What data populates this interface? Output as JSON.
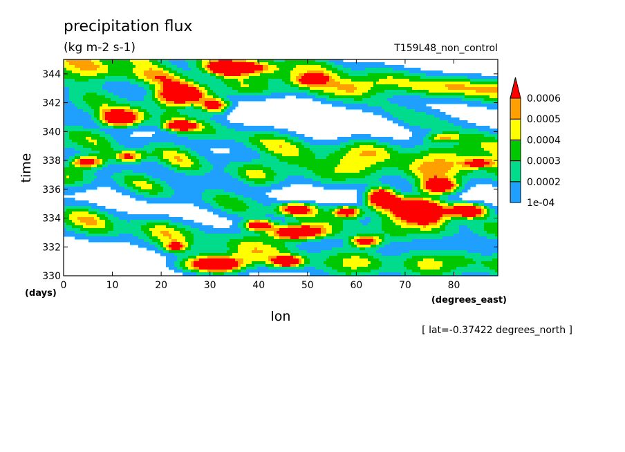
{
  "chart_data": {
    "type": "heatmap",
    "title": "precipitation flux",
    "units": "(kg m-2 s-1)",
    "dataset": "T159L48_non_control",
    "xlabel": "lon",
    "xunits": "(degrees_east)",
    "ylabel": "time",
    "yunits": "(days)",
    "annotation": "[ lat=-0.37422 degrees_north ]",
    "xlim": [
      0,
      89
    ],
    "ylim": [
      330,
      345
    ],
    "x_ticks": [
      0,
      10,
      20,
      30,
      40,
      50,
      60,
      70,
      80
    ],
    "y_ticks": [
      330,
      332,
      334,
      336,
      338,
      340,
      342,
      344
    ],
    "colorbar": {
      "levels": [
        0.0001,
        0.0002,
        0.0003,
        0.0004,
        0.0005,
        0.0006
      ],
      "labels": [
        "1e-04",
        "0.0002",
        "0.0003",
        "0.0004",
        "0.0005",
        "0.0006"
      ],
      "colors": [
        "#ffffff",
        "#1fa0ff",
        "#00dc8c",
        "#00c800",
        "#ffff00",
        "#ffa000",
        "#ff0000"
      ],
      "extend": "max"
    },
    "features": [
      {
        "type": "front",
        "x0": 0,
        "t0": 334,
        "x1": 58,
        "t1": 330.8,
        "w": 1.05,
        "a": 0.0005
      },
      {
        "type": "front",
        "x0": 8,
        "t0": 336.8,
        "x1": 62,
        "t1": 333.2,
        "w": 0.9,
        "a": 0.00038
      },
      {
        "type": "front",
        "x0": 0,
        "t0": 339.6,
        "x1": 38,
        "t1": 337.2,
        "w": 0.95,
        "a": 0.00045
      },
      {
        "type": "front",
        "x0": 5,
        "t0": 342.2,
        "x1": 50,
        "t1": 338.6,
        "w": 1.0,
        "a": 0.00042
      },
      {
        "type": "front",
        "x0": 28,
        "t0": 345.4,
        "x1": 89,
        "t1": 342.6,
        "w": 0.95,
        "a": 0.00038
      },
      {
        "type": "front",
        "x0": 45,
        "t0": 344.0,
        "x1": 89,
        "t1": 339.2,
        "w": 0.9,
        "a": 0.0003
      },
      {
        "type": "front",
        "x0": 0,
        "t0": 345.0,
        "x1": 30,
        "t1": 343.0,
        "w": 0.7,
        "a": 0.00028
      },
      {
        "type": "blob",
        "x": 24,
        "t": 342.5,
        "sx": 5,
        "st": 0.7,
        "a": 0.0009
      },
      {
        "type": "blob",
        "x": 12,
        "t": 341.0,
        "sx": 4,
        "st": 0.6,
        "a": 0.00085
      },
      {
        "type": "blob",
        "x": 35,
        "t": 344.4,
        "sx": 5,
        "st": 0.4,
        "a": 0.0009
      },
      {
        "type": "blob",
        "x": 31,
        "t": 341.8,
        "sx": 3,
        "st": 0.5,
        "a": 0.00075
      },
      {
        "type": "blob",
        "x": 24,
        "t": 340.4,
        "sx": 3,
        "st": 0.3,
        "a": 0.0006
      },
      {
        "type": "blob",
        "x": 5,
        "t": 337.9,
        "sx": 3,
        "st": 0.4,
        "a": 0.00065
      },
      {
        "type": "blob",
        "x": 14,
        "t": 338.3,
        "sx": 3,
        "st": 0.4,
        "a": 0.0006
      },
      {
        "type": "blob",
        "x": 51,
        "t": 343.6,
        "sx": 3,
        "st": 0.4,
        "a": 0.0006
      },
      {
        "type": "blob",
        "x": 65,
        "t": 335.4,
        "sx": 3,
        "st": 0.7,
        "a": 0.0009
      },
      {
        "type": "blob",
        "x": 72,
        "t": 334.5,
        "sx": 6,
        "st": 0.9,
        "a": 0.0011
      },
      {
        "type": "blob",
        "x": 77,
        "t": 336.2,
        "sx": 4,
        "st": 0.5,
        "a": 0.0008
      },
      {
        "type": "blob",
        "x": 83,
        "t": 334.5,
        "sx": 4,
        "st": 0.5,
        "a": 0.0008
      },
      {
        "type": "blob",
        "x": 58,
        "t": 334.4,
        "sx": 3,
        "st": 0.4,
        "a": 0.00065
      },
      {
        "type": "blob",
        "x": 48,
        "t": 333.0,
        "sx": 5,
        "st": 0.5,
        "a": 0.0009
      },
      {
        "type": "blob",
        "x": 40,
        "t": 333.5,
        "sx": 3,
        "st": 0.35,
        "a": 0.0007
      },
      {
        "type": "blob",
        "x": 31,
        "t": 330.8,
        "sx": 6,
        "st": 0.6,
        "a": 0.001
      },
      {
        "type": "blob",
        "x": 46,
        "t": 331.0,
        "sx": 3,
        "st": 0.35,
        "a": 0.0007
      },
      {
        "type": "blob",
        "x": 23,
        "t": 332.0,
        "sx": 2,
        "st": 0.3,
        "a": 0.0005
      },
      {
        "type": "blob",
        "x": 48,
        "t": 334.6,
        "sx": 4,
        "st": 0.4,
        "a": 0.0007
      },
      {
        "type": "blob",
        "x": 62,
        "t": 332.4,
        "sx": 3,
        "st": 0.4,
        "a": 0.0006
      },
      {
        "type": "blob",
        "x": 85,
        "t": 337.8,
        "sx": 3,
        "st": 0.3,
        "a": 0.0005
      },
      {
        "type": "blob",
        "x": 78,
        "t": 339.6,
        "sx": 3,
        "st": 0.3,
        "a": 0.0005
      }
    ]
  }
}
